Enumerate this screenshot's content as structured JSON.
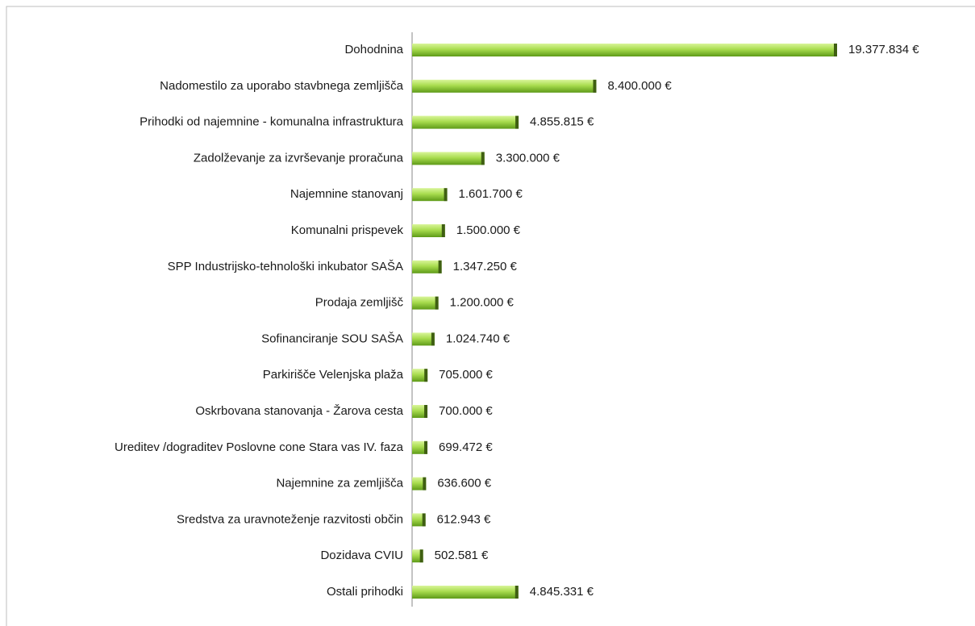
{
  "chart_data": {
    "type": "bar",
    "orientation": "horizontal",
    "categories": [
      "Dohodnina",
      "Nadomestilo za uporabo stavbnega zemljišča",
      "Prihodki od najemnine - komunalna infrastruktura",
      "Zadolževanje za izvrševanje proračuna",
      "Najemnine stanovanj",
      "Komunalni prispevek",
      "SPP Industrijsko-tehnološki inkubator SAŠA",
      "Prodaja zemljišč",
      "Sofinanciranje SOU SAŠA",
      "Parkirišče Velenjska plaža",
      "Oskrbovana stanovanja - Žarova cesta",
      "Ureditev /dograditev Poslovne cone Stara vas IV. faza",
      "Najemnine za zemljišča",
      "Sredstva za uravnoteženje razvitosti občin",
      "Dozidava CVIU",
      "Ostali prihodki"
    ],
    "values": [
      19377834,
      8400000,
      4855815,
      3300000,
      1601700,
      1500000,
      1347250,
      1200000,
      1024740,
      705000,
      700000,
      699472,
      636600,
      612943,
      502581,
      4845331
    ],
    "value_labels": [
      "19.377.834 €",
      "8.400.000 €",
      "4.855.815 €",
      "3.300.000 €",
      "1.601.700 €",
      "1.500.000 €",
      "1.347.250 €",
      "1.200.000 €",
      "1.024.740 €",
      "705.000 €",
      "700.000 €",
      "699.472 €",
      "636.600 €",
      "612.943 €",
      "502.581 €",
      "4.845.331 €"
    ],
    "color": "#8cc63f"
  }
}
